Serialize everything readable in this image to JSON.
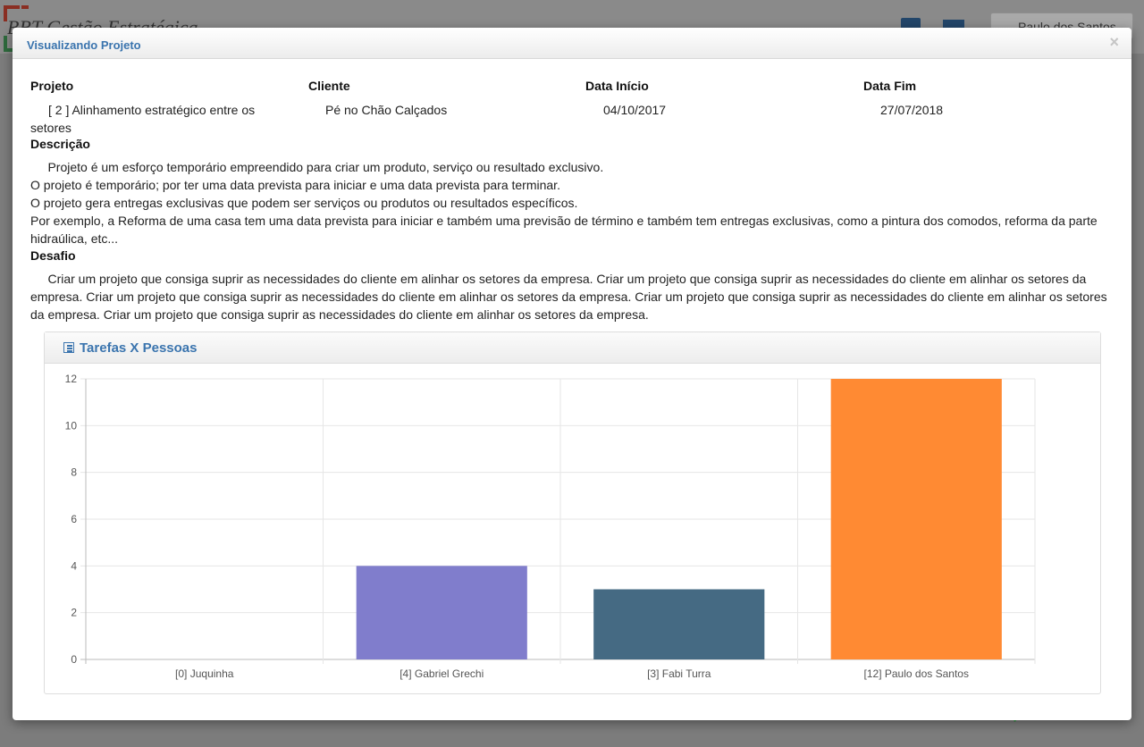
{
  "background": {
    "app_title": "BBT Gestão Estratégica",
    "user_name": "Paulo dos Santos"
  },
  "modal": {
    "title": "Visualizando Projeto",
    "close_label": "×",
    "fields": {
      "projeto_label": "Projeto",
      "projeto_value": "[ 2 ] Alinhamento estratégico entre os setores",
      "cliente_label": "Cliente",
      "cliente_value": "Pé no Chão Calçados",
      "data_inicio_label": "Data Início",
      "data_inicio_value": "04/10/2017",
      "data_fim_label": "Data Fim",
      "data_fim_value": "27/07/2018"
    },
    "descricao_label": "Descrição",
    "descricao_text": "     Projeto é um esforço temporário empreendido para criar um produto, serviço ou resultado exclusivo.\nO projeto é temporário; por ter uma data prevista para iniciar e uma data prevista para terminar.\nO projeto gera entregas exclusivas que podem ser serviços ou produtos ou resultados específicos.\nPor exemplo, a Reforma de uma casa tem uma data prevista para iniciar e também uma previsão de término e também tem entregas exclusivas, como a pintura dos comodos, reforma da parte hidraúlica, etc...",
    "desafio_label": "Desafio",
    "desafio_text": "     Criar um projeto que consiga suprir as necessidades do cliente em alinhar os setores da empresa. Criar um projeto que consiga suprir as necessidades do cliente em alinhar os setores da empresa. Criar um projeto que consiga suprir as necessidades do cliente em alinhar os setores da empresa. Criar um projeto que consiga suprir as necessidades do cliente em alinhar os setores da empresa. Criar um projeto que consiga suprir as necessidades do cliente em alinhar os setores da empresa.",
    "panel_title": "Tarefas X Pessoas",
    "panel_icon": "list-icon"
  },
  "chart_data": {
    "type": "bar",
    "title": "",
    "xlabel": "",
    "ylabel": "",
    "categories": [
      "[0] Juquinha",
      "[4] Gabriel Grechi",
      "[3] Fabi Turra",
      "[12] Paulo dos Santos"
    ],
    "values": [
      0,
      4,
      3,
      12
    ],
    "colors": [
      "#8d88d7",
      "#807dcc",
      "#456a83",
      "#ff8a33"
    ],
    "ylim": [
      0,
      12
    ],
    "yticks": [
      0,
      2,
      4,
      6,
      8,
      10,
      12
    ],
    "grid": true,
    "legend": "none"
  }
}
